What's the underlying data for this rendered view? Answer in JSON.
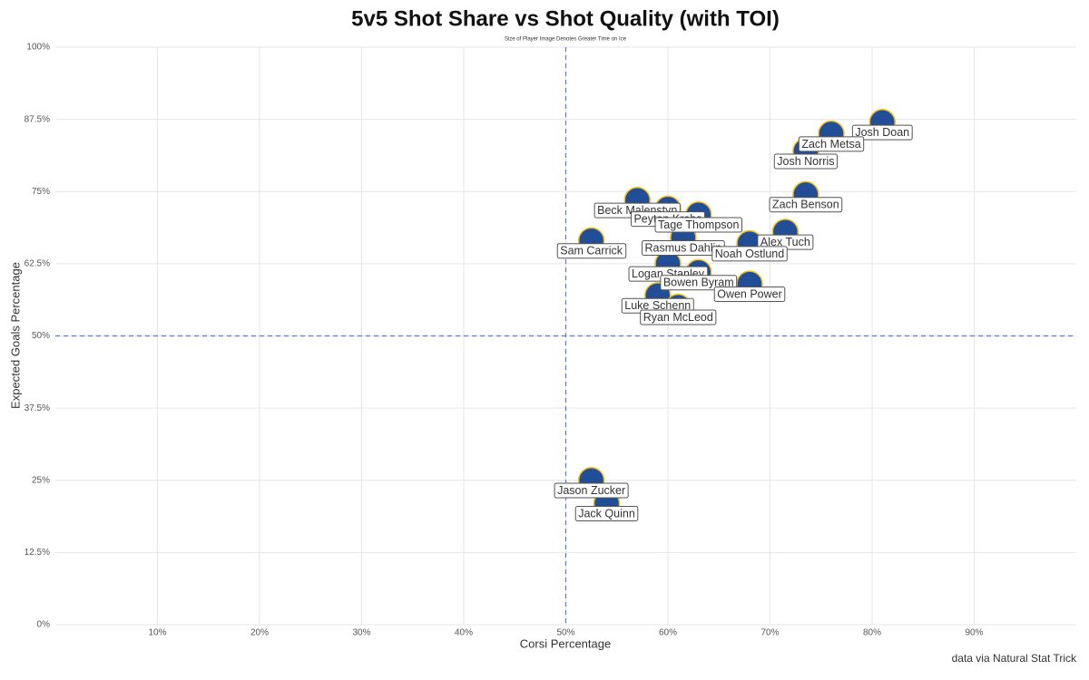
{
  "chart_data": {
    "type": "scatter",
    "title": "5v5 Shot Share vs Shot Quality (with TOI)",
    "subtitle": "Size of Player Image Denotes Greater Time on Ice",
    "x_label": "Corsi Percentage",
    "y_label": "Expected Goals Percentage",
    "caption": "data via Natural Stat Trick",
    "labels": [
      "Josh Doan",
      "Zach Metsa",
      "Josh Norris",
      "Zach Benson",
      "Beck Malenstyn",
      "Peyton Krebs",
      "Tage Thompson",
      "Sam Carrick",
      "Rasmus Dahlin",
      "Alex Tuch",
      "Noah Ostlund",
      "Logan Stanley",
      "Bowen Byram",
      "Owen Power",
      "Luke Schenn",
      "Ryan McLeod",
      "Jason Zucker",
      "Jack Quinn"
    ],
    "x": [
      81,
      76,
      73.5,
      73.5,
      57,
      60,
      63,
      52.5,
      61.5,
      71.5,
      68,
      60,
      63,
      68,
      59,
      61,
      52.5,
      54
    ],
    "values": [
      87,
      85,
      82,
      74.5,
      73.5,
      72,
      71,
      66.5,
      67,
      68,
      66,
      62.5,
      61,
      59,
      57,
      55,
      25,
      21
    ],
    "color": "#0b3a8c",
    "xlim": [
      0,
      100
    ],
    "ylim": [
      0,
      100
    ],
    "xticks": [
      {
        "value": 10,
        "label": "10%"
      },
      {
        "value": 20,
        "label": "20%"
      },
      {
        "value": 30,
        "label": "30%"
      },
      {
        "value": 40,
        "label": "40%"
      },
      {
        "value": 50,
        "label": "50%"
      },
      {
        "value": 60,
        "label": "60%"
      },
      {
        "value": 70,
        "label": "70%"
      },
      {
        "value": 80,
        "label": "80%"
      },
      {
        "value": 90,
        "label": "90%"
      }
    ],
    "yticks": [
      {
        "value": 0,
        "label": "0%"
      },
      {
        "value": 12.5,
        "label": "12.5%"
      },
      {
        "value": 25,
        "label": "25%"
      },
      {
        "value": 37.5,
        "label": "37.5%"
      },
      {
        "value": 50,
        "label": "50%"
      },
      {
        "value": 62.5,
        "label": "62.5%"
      },
      {
        "value": 75,
        "label": "75%"
      },
      {
        "value": 87.5,
        "label": "87.5%"
      },
      {
        "value": 100,
        "label": "100%"
      }
    ],
    "reference_lines": {
      "x": 50,
      "y": 50,
      "color": "#5a78d6"
    },
    "grid": true
  }
}
